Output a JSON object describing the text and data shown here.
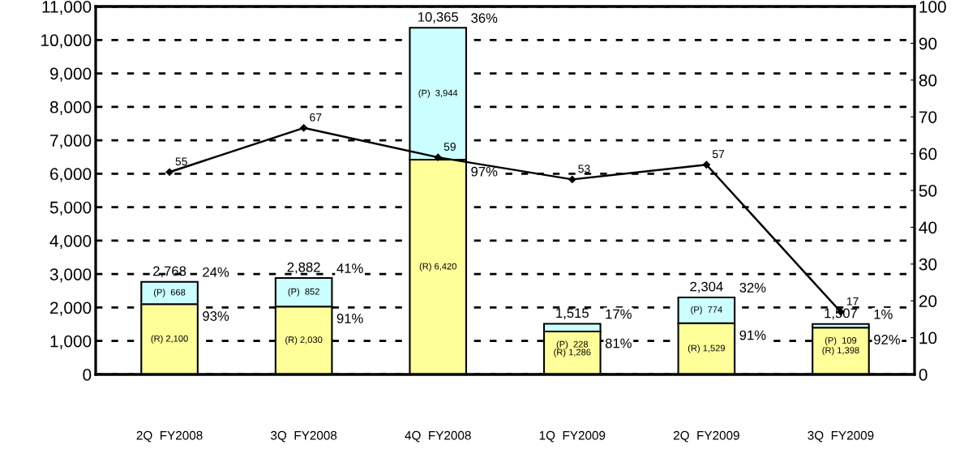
{
  "chart_data": {
    "type": "bar",
    "stacked": true,
    "categories": [
      "2Q  FY2008",
      "3Q  FY2008",
      "4Q  FY2008",
      "1Q  FY2009",
      "2Q  FY2009",
      "3Q  FY2009"
    ],
    "series": [
      {
        "color": "#ffff99",
        "values": [
          2100,
          2030,
          6420,
          1286,
          1529,
          1398
        ],
        "value_labels": [
          "(R) 2,100",
          "(R) 2,030",
          "(R) 6,420",
          "(R) 1,286",
          "(R) 1,529",
          "(R) 1,398"
        ]
      },
      {
        "color": "#ccffff",
        "values": [
          668,
          852,
          3944,
          228,
          774,
          109
        ],
        "value_labels": [
          "(P)  668",
          "(P)  852",
          "(P)  3,944",
          "(P)  228",
          "(P)  774",
          "(P)  109"
        ]
      },
      {
        "type": "line",
        "axis": "y2",
        "color": "#000000",
        "marker": "diamond",
        "values": [
          55,
          67,
          59,
          53,
          57,
          17
        ],
        "data_labels": true
      }
    ],
    "totals": [
      "2,768",
      "2,882",
      "10,365",
      "1,515",
      "2,304",
      "1,507"
    ],
    "annotations": [
      {
        "text": "24%",
        "x": "2Q  FY2008",
        "y": 2768
      },
      {
        "text": "93%",
        "x": "2Q  FY2008",
        "y": 2100
      },
      {
        "text": "41%",
        "x": "3Q  FY2008",
        "y": 2882
      },
      {
        "text": "91%",
        "x": "3Q  FY2008",
        "y": 2030
      },
      {
        "text": "36%",
        "x": "4Q  FY2008",
        "y": 10365
      },
      {
        "text": "97%",
        "x": "4Q  FY2008",
        "y": 6420
      },
      {
        "text": "17%",
        "x": "1Q  FY2009",
        "y": 1515
      },
      {
        "text": "81%",
        "x": "1Q  FY2009",
        "y": 1286
      },
      {
        "text": "32%",
        "x": "2Q  FY2009",
        "y": 2304
      },
      {
        "text": "91%",
        "x": "2Q  FY2009",
        "y": 1529
      },
      {
        "text": "1%",
        "x": "3Q  FY2009",
        "y": 1507
      },
      {
        "text": "92%",
        "x": "3Q  FY2009",
        "y": 1398
      }
    ],
    "ylim": [
      0,
      11000
    ],
    "yticks": [
      0,
      {
        "value": 1000,
        "label": "1,000"
      },
      {
        "value": 2000,
        "label": "2,000"
      },
      {
        "value": 3000,
        "label": "3,000"
      },
      {
        "value": 4000,
        "label": "4,000"
      },
      {
        "value": 5000,
        "label": "5,000"
      },
      {
        "value": 6000,
        "label": "6,000"
      },
      {
        "value": 7000,
        "label": "7,000"
      },
      {
        "value": 8000,
        "label": "8,000"
      },
      {
        "value": 9000,
        "label": "9,000"
      },
      {
        "value": 10000,
        "label": "10,000"
      },
      {
        "value": 11000,
        "label": "11,000"
      }
    ],
    "y2lim": [
      0,
      100
    ],
    "y2ticks": [
      0,
      10,
      20,
      30,
      40,
      50,
      60,
      70,
      80,
      90,
      100
    ],
    "grid": "y"
  }
}
